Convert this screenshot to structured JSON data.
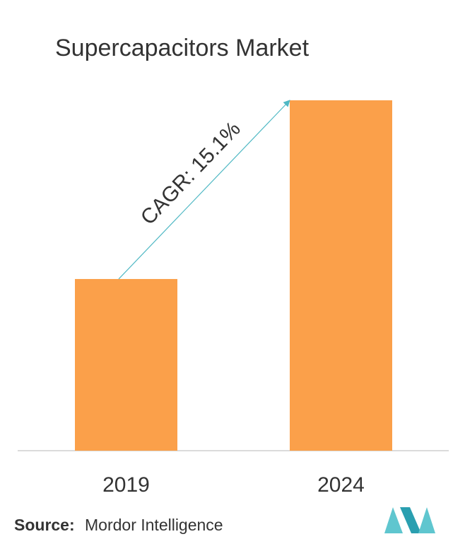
{
  "chart_data": {
    "type": "bar",
    "title": "Supercapacitors Market",
    "categories": [
      "2019",
      "2024"
    ],
    "values": [
      49,
      100
    ],
    "color": "#fba04a",
    "ylim": [
      0,
      100
    ],
    "annotation": "CAGR: 15.1%",
    "source_label": "Source:",
    "source": "Mordor Intelligence"
  }
}
